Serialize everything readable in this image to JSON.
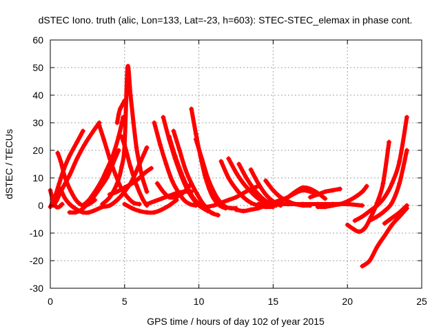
{
  "chart_data": {
    "type": "scatter",
    "title": "dSTEC Iono. truth (alic, Lon=133, Lat=-23, h=603): STEC-STEC_elemax in phase cont.",
    "xlabel": "GPS time / hours of day 102 of year 2015",
    "ylabel": "dSTEC  / TECUs",
    "xlim": [
      0,
      25
    ],
    "ylim": [
      -30,
      60
    ],
    "xticks": [
      "0",
      "5",
      "10",
      "15",
      "20",
      "25"
    ],
    "yticks": [
      "-30",
      "-20",
      "-10",
      "0",
      "10",
      "20",
      "30",
      "40",
      "50",
      "60"
    ],
    "grid": true,
    "marker": "plus",
    "color": "#ff0000",
    "series": [
      {
        "x": [
          0.0,
          0.2,
          0.4,
          0.6,
          0.8
        ],
        "y": [
          5.5,
          1.5,
          -0.5,
          -0.5,
          0.5
        ]
      },
      {
        "x": [
          0.0,
          0.3,
          0.6,
          0.9,
          1.3,
          1.8,
          2.2
        ],
        "y": [
          -0.5,
          3,
          8,
          13,
          18,
          23,
          27
        ]
      },
      {
        "x": [
          0.2,
          0.4,
          0.8,
          1.3,
          1.8,
          2.3,
          2.9,
          3.3
        ],
        "y": [
          0,
          1.5,
          6,
          11,
          17,
          22,
          27,
          30
        ]
      },
      {
        "x": [
          0.5,
          0.7,
          1.0,
          1.4,
          1.8,
          2.2,
          2.6,
          3.0
        ],
        "y": [
          19,
          16,
          10,
          5,
          1.5,
          0,
          0.5,
          2
        ]
      },
      {
        "x": [
          0.7,
          1.0,
          1.4,
          1.8,
          2.2,
          2.6,
          3.1,
          3.5
        ],
        "y": [
          6,
          2.5,
          0,
          -1.5,
          -2.5,
          -2.5,
          -1.5,
          -0.5
        ]
      },
      {
        "x": [
          1.3,
          1.7,
          2.1,
          2.5,
          2.9,
          3.3,
          3.8,
          4.2,
          4.6
        ],
        "y": [
          -2.5,
          -2.5,
          -1.5,
          0.5,
          3,
          6,
          10,
          15,
          20
        ]
      },
      {
        "x": [
          2.2,
          2.6,
          3.0,
          3.4,
          3.8,
          4.2,
          4.6,
          4.9
        ],
        "y": [
          0,
          2,
          5,
          8.5,
          13,
          18,
          25,
          32
        ]
      },
      {
        "x": [
          3.3,
          3.6,
          4.0,
          4.4,
          4.8,
          5.2,
          5.6,
          6.0
        ],
        "y": [
          29,
          24,
          17,
          11,
          6,
          3,
          1,
          0.5
        ]
      },
      {
        "x": [
          4.5,
          4.6,
          4.7,
          4.8,
          4.9,
          5.0,
          5.05
        ],
        "y": [
          30,
          33,
          35,
          36,
          37,
          38,
          38
        ]
      },
      {
        "x": [
          3.5,
          4.0,
          4.5,
          4.8,
          5.0,
          5.2,
          5.4,
          5.6,
          5.8,
          6.0,
          6.2,
          6.5
        ],
        "y": [
          0.5,
          3,
          8,
          14,
          22,
          50,
          40,
          30,
          21,
          15,
          10,
          5
        ]
      },
      {
        "x": [
          4.8,
          5.1,
          5.4,
          5.8,
          6.2,
          6.5
        ],
        "y": [
          25,
          20,
          14,
          7.5,
          2.5,
          0
        ]
      },
      {
        "x": [
          3.5,
          4.0,
          4.5,
          5.0,
          5.5,
          6.0,
          6.5
        ],
        "y": [
          -0.5,
          0,
          2,
          5,
          9,
          15,
          21
        ]
      },
      {
        "x": [
          4.0,
          4.5,
          5.0,
          5.5,
          6.0,
          6.4,
          6.8
        ],
        "y": [
          4,
          5,
          6.5,
          8,
          10,
          12,
          13.5
        ]
      },
      {
        "x": [
          5.0,
          5.5,
          6.0,
          6.5,
          7.0,
          7.5,
          8.0,
          8.5
        ],
        "y": [
          0.5,
          -1,
          -2,
          -2.5,
          -2.5,
          -1.5,
          0,
          2
        ]
      },
      {
        "x": [
          7.0,
          7.4,
          7.8,
          8.2,
          8.6,
          9.0,
          9.4,
          9.8
        ],
        "y": [
          30,
          22,
          15,
          9,
          5,
          2,
          0.5,
          0
        ]
      },
      {
        "x": [
          7.6,
          8.0,
          8.4,
          8.8,
          9.2,
          9.6,
          10.0,
          10.6
        ],
        "y": [
          32,
          24,
          17,
          11,
          6,
          2.5,
          0,
          -2
        ]
      },
      {
        "x": [
          8.0,
          8.4,
          8.8,
          9.2,
          9.6,
          10.0,
          10.5,
          11.0
        ],
        "y": [
          25,
          18,
          12,
          7,
          3,
          0.5,
          -1.5,
          -3
        ]
      },
      {
        "x": [
          8.3,
          8.7,
          9.1,
          9.5,
          9.9,
          10.3,
          10.8,
          11.3
        ],
        "y": [
          27,
          20,
          13,
          8,
          4,
          0.5,
          -2.5,
          -3.5
        ]
      },
      {
        "x": [
          7.2,
          7.6,
          8.0,
          8.4,
          8.8,
          9.2,
          9.5
        ],
        "y": [
          8,
          5,
          3,
          3,
          4,
          6,
          8
        ]
      },
      {
        "x": [
          6.5,
          7.0,
          7.5,
          8.0,
          8.5,
          9.0,
          9.5
        ],
        "y": [
          0.5,
          1.5,
          2.5,
          3.5,
          4.5,
          5,
          5
        ]
      },
      {
        "x": [
          9.5,
          9.8,
          10.1,
          10.4,
          10.7,
          11.0,
          11.4,
          11.8
        ],
        "y": [
          35,
          26,
          18,
          11,
          6,
          2.5,
          0,
          -1
        ]
      },
      {
        "x": [
          10.5,
          11.0,
          11.5,
          12.0,
          12.5,
          13.0,
          13.5,
          14.0
        ],
        "y": [
          -0.5,
          0,
          1,
          2,
          3,
          4.5,
          6,
          7
        ]
      },
      {
        "x": [
          9.8,
          10.2,
          10.6,
          11.0,
          11.4,
          11.8,
          12.2,
          12.5
        ],
        "y": [
          24,
          17,
          10,
          5,
          1.5,
          -0.5,
          -1,
          -1
        ]
      },
      {
        "x": [
          11.5,
          12.0,
          12.5,
          13.0,
          13.5,
          14.0,
          14.5,
          15.0
        ],
        "y": [
          16,
          10,
          6,
          3,
          1,
          0,
          -0.5,
          -0.5
        ]
      },
      {
        "x": [
          12.0,
          12.5,
          13.0,
          13.5,
          14.0,
          14.5,
          15.0
        ],
        "y": [
          17,
          12,
          8,
          5,
          2.5,
          1,
          0
        ]
      },
      {
        "x": [
          12.7,
          13.2,
          13.7,
          14.2,
          14.7,
          15.2
        ],
        "y": [
          15,
          10,
          6,
          3,
          1,
          0
        ]
      },
      {
        "x": [
          13.5,
          14.0,
          14.5,
          15.0,
          15.5
        ],
        "y": [
          13,
          8,
          4,
          1.5,
          0
        ]
      },
      {
        "x": [
          12.5,
          13.0,
          13.5,
          14.0,
          14.5,
          15.0,
          15.5,
          16.0
        ],
        "y": [
          -1.5,
          -2,
          -1.5,
          -1,
          0,
          1,
          2,
          3
        ]
      },
      {
        "x": [
          14.5,
          15.0,
          15.5,
          16.0,
          16.5,
          17.0,
          17.5
        ],
        "y": [
          9,
          5.5,
          3,
          1.5,
          0.5,
          0,
          0
        ]
      },
      {
        "x": [
          14.0,
          15.0,
          16.0,
          17.0,
          18.0,
          19.0,
          20.0,
          21.0
        ],
        "y": [
          0.5,
          0.5,
          0.5,
          0.5,
          0.5,
          0.5,
          0.5,
          0
        ]
      },
      {
        "x": [
          15.5,
          16.0,
          16.5,
          17.0,
          17.5,
          18.0
        ],
        "y": [
          1.5,
          3,
          4.5,
          5.5,
          5,
          4
        ]
      },
      {
        "x": [
          16.0,
          16.5,
          17.0,
          17.5,
          18.0,
          18.5
        ],
        "y": [
          3,
          5,
          6.5,
          6,
          4.5,
          2.5
        ]
      },
      {
        "x": [
          17.5,
          18.0,
          18.5,
          19.0,
          19.5
        ],
        "y": [
          3,
          4,
          5,
          5.5,
          6
        ]
      },
      {
        "x": [
          18.0,
          18.5,
          19.0,
          19.5,
          20.0,
          20.5,
          21.0,
          21.3
        ],
        "y": [
          -0.5,
          -0.5,
          0,
          0.5,
          1.5,
          3,
          5,
          7
        ]
      },
      {
        "x": [
          20.0,
          20.4,
          20.8,
          21.2,
          21.6,
          22.0,
          22.4,
          22.8
        ],
        "y": [
          -7,
          -8.5,
          -9.5,
          -8,
          -4,
          1,
          8,
          23
        ]
      },
      {
        "x": [
          20.5,
          21.0,
          21.5,
          22.0,
          22.5,
          23.0,
          23.5,
          24.0
        ],
        "y": [
          -5.5,
          -4,
          -2,
          0,
          3,
          8,
          16,
          32
        ]
      },
      {
        "x": [
          21.5,
          22.0,
          22.5,
          23.0,
          23.5,
          24.0
        ],
        "y": [
          -5.5,
          -4,
          -2,
          1,
          8,
          20
        ]
      },
      {
        "x": [
          22.5,
          23.0,
          23.5,
          24.0
        ],
        "y": [
          -6.5,
          -4.5,
          -2.5,
          0
        ]
      },
      {
        "x": [
          21.0,
          21.5,
          22.0,
          22.5,
          23.0,
          23.5,
          24.0
        ],
        "y": [
          -22,
          -20,
          -15,
          -11,
          -7,
          -4,
          -1
        ]
      }
    ]
  }
}
